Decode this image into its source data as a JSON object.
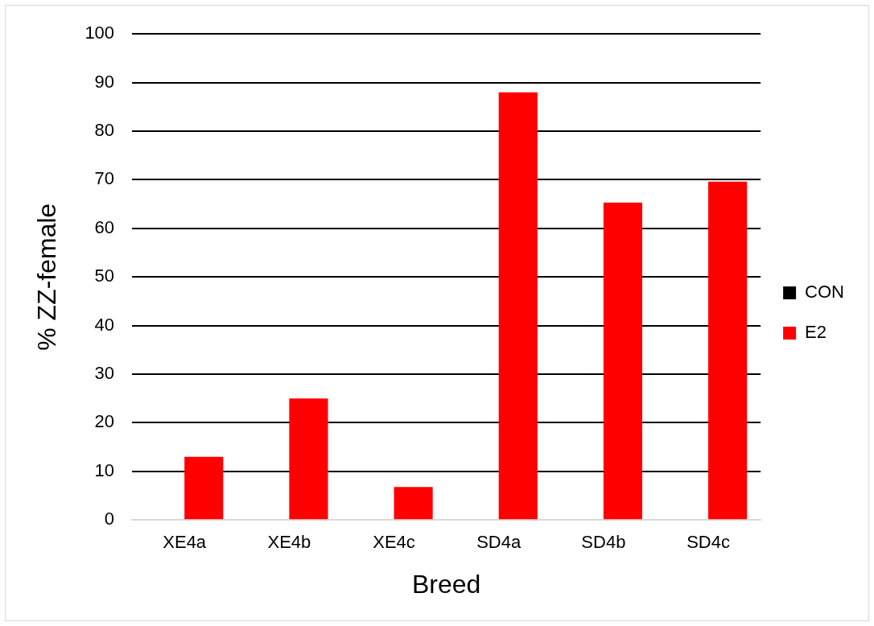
{
  "chart_data": {
    "type": "bar",
    "xlabel": "Breed",
    "ylabel": "% ZZ-female",
    "categories": [
      "XE4a",
      "XE4b",
      "XE4c",
      "SD4a",
      "SD4b",
      "SD4c"
    ],
    "series": [
      {
        "name": "CON",
        "color": "#000000",
        "values": [
          0,
          0,
          0,
          0,
          0,
          0
        ]
      },
      {
        "name": "E2",
        "color": "#ff0000",
        "values": [
          13,
          25,
          6.8,
          88,
          65.3,
          69.6
        ]
      }
    ],
    "ylim": [
      0,
      100
    ],
    "yticks": [
      0,
      10,
      20,
      30,
      40,
      50,
      60,
      70,
      80,
      90,
      100
    ],
    "grid": "y",
    "legend": "right"
  }
}
